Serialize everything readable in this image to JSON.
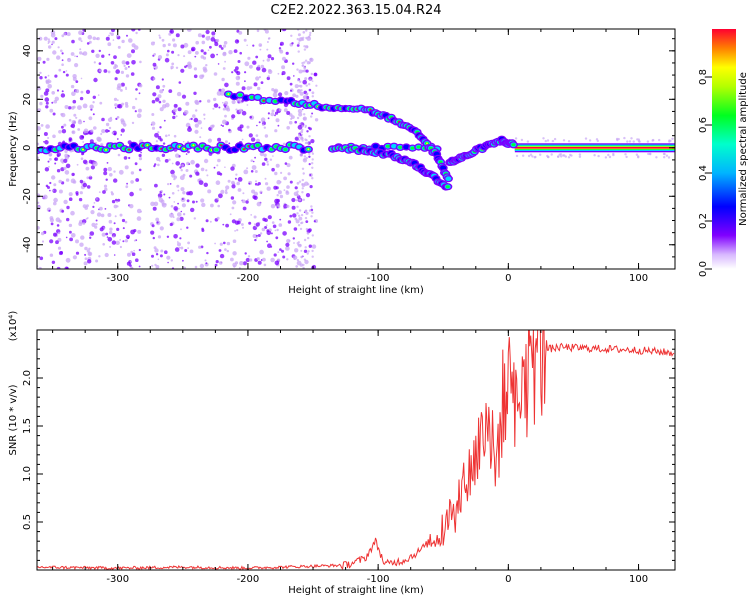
{
  "title": "C2E2.2022.363.15.04.R24",
  "chart_data": [
    {
      "type": "heatmap",
      "xlabel": "Height of straight line (km)",
      "ylabel": "Frequency (Hz)",
      "xlim": [
        -362,
        128
      ],
      "ylim": [
        -50,
        49
      ],
      "xticks": [
        -300,
        -200,
        -100,
        0,
        100
      ],
      "yticks": [
        -40,
        -20,
        0,
        20,
        40
      ],
      "colorbar": {
        "label": "Normalized spectral amplitude",
        "range": [
          0,
          1
        ],
        "ticks": [
          "0.0",
          "0.2",
          "0.4",
          "0.6",
          "0.8"
        ]
      },
      "colormap": [
        "#ffffff",
        "#c9a6f5",
        "#7b00ff",
        "#0000ff",
        "#00d6ff",
        "#00ff3a",
        "#ffff00",
        "#ff7a00",
        "#ff0040"
      ],
      "features": [
        {
          "name": "noise_band",
          "x": [
            -362,
            -150
          ]
        },
        {
          "name": "zero_line",
          "x": [
            -362,
            128
          ],
          "freq": [
            0,
            0
          ]
        },
        {
          "name": "upper_branch",
          "x": [
            -215,
            -170,
            -140,
            -110,
            -90,
            -70,
            -55,
            -45
          ],
          "freq": [
            22,
            19,
            17,
            16,
            12,
            6,
            -3,
            -14
          ]
        },
        {
          "name": "lower_branch",
          "x": [
            -135,
            -110,
            -90,
            -75,
            -60,
            -45
          ],
          "freq": [
            0,
            -1,
            -3,
            -6,
            -11,
            -17
          ]
        },
        {
          "name": "merge_arc",
          "x": [
            -45,
            -35,
            -20,
            -5,
            5
          ],
          "freq": [
            -6,
            -4,
            0,
            3,
            1
          ]
        }
      ]
    },
    {
      "type": "line",
      "xlabel": "Height of straight line (km)",
      "ylabel": "SNR (10 * v/v)",
      "scale_label": "(x10⁴)",
      "xlim": [
        -362,
        128
      ],
      "ylim": [
        0,
        2.5
      ],
      "xticks": [
        -300,
        -200,
        -100,
        0,
        100
      ],
      "yticks": [
        0.5,
        1.0,
        1.5,
        2.0
      ],
      "ytick_labels": [
        "0.5",
        "1.0",
        "1.5",
        "2.0"
      ],
      "color": "#ee3333",
      "series": [
        {
          "x": [
            -362,
            -300,
            -250,
            -200,
            -150,
            -125,
            -110,
            -102,
            -95,
            -80,
            -70,
            -60,
            -50,
            -45,
            -40,
            -35,
            -30,
            -25,
            -20,
            -15,
            -10,
            -5,
            0,
            5,
            10,
            15,
            20,
            25,
            30,
            40,
            60,
            80,
            100,
            128
          ],
          "y": [
            0.03,
            0.02,
            0.03,
            0.02,
            0.04,
            0.05,
            0.12,
            0.3,
            0.06,
            0.1,
            0.18,
            0.3,
            0.35,
            0.6,
            0.55,
            0.9,
            1.0,
            1.2,
            1.4,
            1.6,
            1.0,
            1.7,
            1.9,
            1.6,
            2.0,
            2.1,
            2.25,
            2.28,
            2.3,
            2.32,
            2.31,
            2.3,
            2.29,
            2.26
          ]
        }
      ]
    }
  ]
}
